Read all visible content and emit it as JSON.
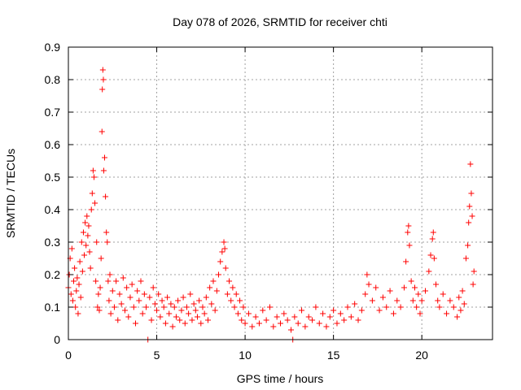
{
  "chart_data": {
    "type": "scatter",
    "title": "Day 078 of 2026, SRMTID for receiver chti",
    "xlabel": "GPS time / hours",
    "ylabel": "SRMTID / TECUs",
    "xlim": [
      0,
      24
    ],
    "ylim": [
      0,
      0.9
    ],
    "x_ticks": [
      0,
      5,
      10,
      15,
      20
    ],
    "y_ticks": [
      0,
      0.1,
      0.2,
      0.3,
      0.4,
      0.5,
      0.6,
      0.7,
      0.8,
      0.9
    ],
    "grid": true,
    "marker": "+",
    "marker_color": "#ff0000",
    "series": [
      {
        "name": "SRMTID",
        "points": [
          [
            0.0,
            0.16
          ],
          [
            0.05,
            0.2
          ],
          [
            0.1,
            0.25
          ],
          [
            0.15,
            0.14
          ],
          [
            0.2,
            0.28
          ],
          [
            0.25,
            0.12
          ],
          [
            0.3,
            0.18
          ],
          [
            0.35,
            0.22
          ],
          [
            0.4,
            0.1
          ],
          [
            0.45,
            0.15
          ],
          [
            0.5,
            0.19
          ],
          [
            0.55,
            0.08
          ],
          [
            0.6,
            0.17
          ],
          [
            0.65,
            0.24
          ],
          [
            0.7,
            0.13
          ],
          [
            0.75,
            0.3
          ],
          [
            0.8,
            0.21
          ],
          [
            0.85,
            0.33
          ],
          [
            0.9,
            0.26
          ],
          [
            0.95,
            0.36
          ],
          [
            1.0,
            0.29
          ],
          [
            1.05,
            0.38
          ],
          [
            1.1,
            0.32
          ],
          [
            1.15,
            0.35
          ],
          [
            1.2,
            0.27
          ],
          [
            1.25,
            0.22
          ],
          [
            1.3,
            0.4
          ],
          [
            1.35,
            0.45
          ],
          [
            1.4,
            0.52
          ],
          [
            1.45,
            0.5
          ],
          [
            1.5,
            0.42
          ],
          [
            1.55,
            0.18
          ],
          [
            1.6,
            0.3
          ],
          [
            1.65,
            0.1
          ],
          [
            1.7,
            0.14
          ],
          [
            1.75,
            0.09
          ],
          [
            1.8,
            0.16
          ],
          [
            1.85,
            0.25
          ],
          [
            1.9,
            0.64
          ],
          [
            1.92,
            0.77
          ],
          [
            1.95,
            0.83
          ],
          [
            1.98,
            0.8
          ],
          [
            2.0,
            0.52
          ],
          [
            2.05,
            0.56
          ],
          [
            2.1,
            0.44
          ],
          [
            2.15,
            0.33
          ],
          [
            2.2,
            0.3
          ],
          [
            2.25,
            0.18
          ],
          [
            2.3,
            0.12
          ],
          [
            2.35,
            0.2
          ],
          [
            2.4,
            0.08
          ],
          [
            2.5,
            0.15
          ],
          [
            2.6,
            0.1
          ],
          [
            2.7,
            0.18
          ],
          [
            2.8,
            0.06
          ],
          [
            2.9,
            0.14
          ],
          [
            3.0,
            0.11
          ],
          [
            3.1,
            0.19
          ],
          [
            3.2,
            0.09
          ],
          [
            3.3,
            0.16
          ],
          [
            3.4,
            0.07
          ],
          [
            3.5,
            0.13
          ],
          [
            3.6,
            0.17
          ],
          [
            3.7,
            0.1
          ],
          [
            3.8,
            0.05
          ],
          [
            3.9,
            0.15
          ],
          [
            4.0,
            0.12
          ],
          [
            4.1,
            0.18
          ],
          [
            4.2,
            0.08
          ],
          [
            4.3,
            0.14
          ],
          [
            4.4,
            0.1
          ],
          [
            4.5,
            0.0
          ],
          [
            4.6,
            0.13
          ],
          [
            4.7,
            0.06
          ],
          [
            4.8,
            0.16
          ],
          [
            4.9,
            0.11
          ],
          [
            5.0,
            0.09
          ],
          [
            5.1,
            0.14
          ],
          [
            5.2,
            0.07
          ],
          [
            5.3,
            0.12
          ],
          [
            5.4,
            0.1
          ],
          [
            5.5,
            0.05
          ],
          [
            5.6,
            0.13
          ],
          [
            5.7,
            0.08
          ],
          [
            5.8,
            0.11
          ],
          [
            5.9,
            0.04
          ],
          [
            6.0,
            0.1
          ],
          [
            6.1,
            0.07
          ],
          [
            6.2,
            0.12
          ],
          [
            6.3,
            0.06
          ],
          [
            6.4,
            0.09
          ],
          [
            6.5,
            0.13
          ],
          [
            6.6,
            0.05
          ],
          [
            6.7,
            0.1
          ],
          [
            6.8,
            0.08
          ],
          [
            6.9,
            0.14
          ],
          [
            7.0,
            0.06
          ],
          [
            7.1,
            0.11
          ],
          [
            7.2,
            0.09
          ],
          [
            7.3,
            0.07
          ],
          [
            7.4,
            0.12
          ],
          [
            7.5,
            0.05
          ],
          [
            7.6,
            0.1
          ],
          [
            7.7,
            0.08
          ],
          [
            7.8,
            0.13
          ],
          [
            7.9,
            0.06
          ],
          [
            8.0,
            0.16
          ],
          [
            8.1,
            0.11
          ],
          [
            8.2,
            0.18
          ],
          [
            8.3,
            0.09
          ],
          [
            8.4,
            0.15
          ],
          [
            8.5,
            0.2
          ],
          [
            8.6,
            0.24
          ],
          [
            8.7,
            0.27
          ],
          [
            8.8,
            0.3
          ],
          [
            8.85,
            0.28
          ],
          [
            8.9,
            0.22
          ],
          [
            9.0,
            0.14
          ],
          [
            9.1,
            0.18
          ],
          [
            9.2,
            0.12
          ],
          [
            9.3,
            0.16
          ],
          [
            9.4,
            0.1
          ],
          [
            9.5,
            0.14
          ],
          [
            9.6,
            0.08
          ],
          [
            9.7,
            0.12
          ],
          [
            9.8,
            0.06
          ],
          [
            9.9,
            0.1
          ],
          [
            10.0,
            0.05
          ],
          [
            10.2,
            0.08
          ],
          [
            10.4,
            0.04
          ],
          [
            10.6,
            0.07
          ],
          [
            10.8,
            0.05
          ],
          [
            11.0,
            0.09
          ],
          [
            11.2,
            0.06
          ],
          [
            11.4,
            0.1
          ],
          [
            11.6,
            0.04
          ],
          [
            11.8,
            0.07
          ],
          [
            12.0,
            0.05
          ],
          [
            12.2,
            0.08
          ],
          [
            12.4,
            0.06
          ],
          [
            12.6,
            0.03
          ],
          [
            12.7,
            0.0
          ],
          [
            12.8,
            0.07
          ],
          [
            13.0,
            0.05
          ],
          [
            13.2,
            0.09
          ],
          [
            13.4,
            0.04
          ],
          [
            13.6,
            0.07
          ],
          [
            13.8,
            0.06
          ],
          [
            14.0,
            0.1
          ],
          [
            14.2,
            0.05
          ],
          [
            14.4,
            0.08
          ],
          [
            14.6,
            0.04
          ],
          [
            14.8,
            0.07
          ],
          [
            15.0,
            0.09
          ],
          [
            15.2,
            0.05
          ],
          [
            15.4,
            0.08
          ],
          [
            15.6,
            0.06
          ],
          [
            15.8,
            0.1
          ],
          [
            16.0,
            0.07
          ],
          [
            16.2,
            0.11
          ],
          [
            16.4,
            0.06
          ],
          [
            16.6,
            0.09
          ],
          [
            16.8,
            0.14
          ],
          [
            16.9,
            0.2
          ],
          [
            17.0,
            0.17
          ],
          [
            17.2,
            0.12
          ],
          [
            17.4,
            0.16
          ],
          [
            17.6,
            0.09
          ],
          [
            17.8,
            0.13
          ],
          [
            18.0,
            0.1
          ],
          [
            18.2,
            0.15
          ],
          [
            18.4,
            0.08
          ],
          [
            18.6,
            0.12
          ],
          [
            18.8,
            0.1
          ],
          [
            19.0,
            0.16
          ],
          [
            19.1,
            0.24
          ],
          [
            19.2,
            0.33
          ],
          [
            19.25,
            0.35
          ],
          [
            19.3,
            0.29
          ],
          [
            19.4,
            0.18
          ],
          [
            19.5,
            0.12
          ],
          [
            19.6,
            0.16
          ],
          [
            19.7,
            0.1
          ],
          [
            19.8,
            0.14
          ],
          [
            19.9,
            0.08
          ],
          [
            20.0,
            0.12
          ],
          [
            20.2,
            0.15
          ],
          [
            20.4,
            0.21
          ],
          [
            20.5,
            0.26
          ],
          [
            20.6,
            0.31
          ],
          [
            20.65,
            0.33
          ],
          [
            20.7,
            0.25
          ],
          [
            20.8,
            0.17
          ],
          [
            20.9,
            0.12
          ],
          [
            21.0,
            0.1
          ],
          [
            21.2,
            0.14
          ],
          [
            21.4,
            0.08
          ],
          [
            21.6,
            0.12
          ],
          [
            21.8,
            0.1
          ],
          [
            22.0,
            0.07
          ],
          [
            22.1,
            0.13
          ],
          [
            22.2,
            0.09
          ],
          [
            22.3,
            0.15
          ],
          [
            22.4,
            0.11
          ],
          [
            22.5,
            0.25
          ],
          [
            22.6,
            0.29
          ],
          [
            22.65,
            0.36
          ],
          [
            22.7,
            0.41
          ],
          [
            22.75,
            0.54
          ],
          [
            22.8,
            0.45
          ],
          [
            22.85,
            0.38
          ],
          [
            22.9,
            0.17
          ],
          [
            22.95,
            0.21
          ]
        ]
      }
    ]
  }
}
